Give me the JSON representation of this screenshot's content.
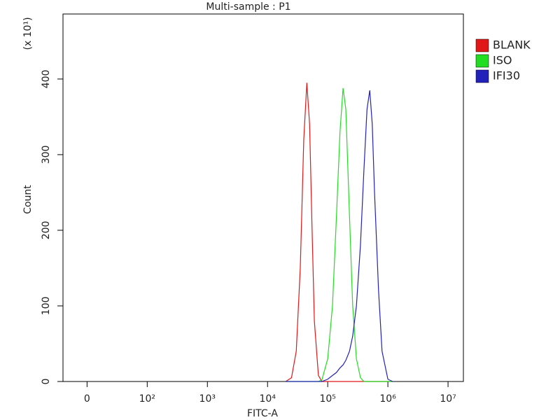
{
  "chart_data": {
    "type": "line",
    "title": "Multi-sample : P1",
    "xlabel": "FITC-A",
    "ylabel": "Count",
    "y_multiplier": "(x 10¹)",
    "xscale": "biexponential",
    "xlim": [
      -40,
      18000000
    ],
    "xticks": [
      0,
      {
        "value": 100,
        "label": "10²"
      },
      {
        "value": 1000,
        "label": "10³"
      },
      {
        "value": 10000,
        "label": "10⁴"
      },
      {
        "value": 100000,
        "label": "10⁵"
      },
      {
        "value": 1000000,
        "label": "10⁶"
      },
      {
        "value": 10000000,
        "label": "10⁷"
      }
    ],
    "ylim": [
      0,
      486
    ],
    "yticks": [
      0,
      100,
      200,
      300,
      400
    ],
    "legend": "outside-top-right",
    "x": [
      20000,
      25000,
      30000,
      35000,
      40000,
      45000,
      50000,
      55000,
      60000,
      70000,
      80000,
      100000,
      120000,
      140000,
      160000,
      180000,
      200000,
      230000,
      260000,
      300000,
      350000,
      400000,
      450000,
      500000,
      550000,
      600000,
      700000,
      800000,
      1000000,
      1200000
    ],
    "series": [
      {
        "name": "BLANK",
        "color": "#e01818",
        "values": [
          0,
          5,
          40,
          150,
          320,
          395,
          340,
          200,
          80,
          8,
          0,
          0,
          0,
          0,
          0,
          0,
          0,
          0,
          0,
          0,
          0,
          0,
          0,
          0,
          0,
          0,
          0,
          0,
          0,
          0
        ]
      },
      {
        "name": "ISO",
        "color": "#22dd22",
        "values": [
          0,
          0,
          0,
          0,
          0,
          0,
          0,
          0,
          0,
          0,
          2,
          30,
          100,
          220,
          330,
          388,
          360,
          220,
          100,
          30,
          5,
          0,
          0,
          0,
          0,
          0,
          0,
          0,
          0,
          0
        ]
      },
      {
        "name": "IFI30",
        "color": "#2222bb",
        "values": [
          0,
          0,
          0,
          0,
          0,
          0,
          0,
          0,
          0,
          0,
          0,
          3,
          8,
          12,
          18,
          22,
          28,
          40,
          60,
          100,
          180,
          280,
          360,
          385,
          340,
          250,
          120,
          40,
          3,
          0
        ]
      }
    ]
  }
}
